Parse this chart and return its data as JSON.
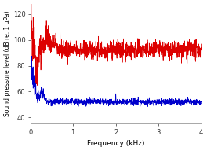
{
  "title": "",
  "xlabel": "Frequency (kHz)",
  "ylabel": "Sound pressure level (dB re. 1 μPa)",
  "xlim": [
    0,
    4
  ],
  "ylim": [
    35,
    128
  ],
  "yticks": [
    40,
    60,
    80,
    100,
    120
  ],
  "xticks": [
    0,
    1,
    2,
    3,
    4
  ],
  "red_color": "#dd0000",
  "blue_color": "#0000cc",
  "background_color": "#ffffff",
  "seed": 42,
  "n_points": 1200
}
